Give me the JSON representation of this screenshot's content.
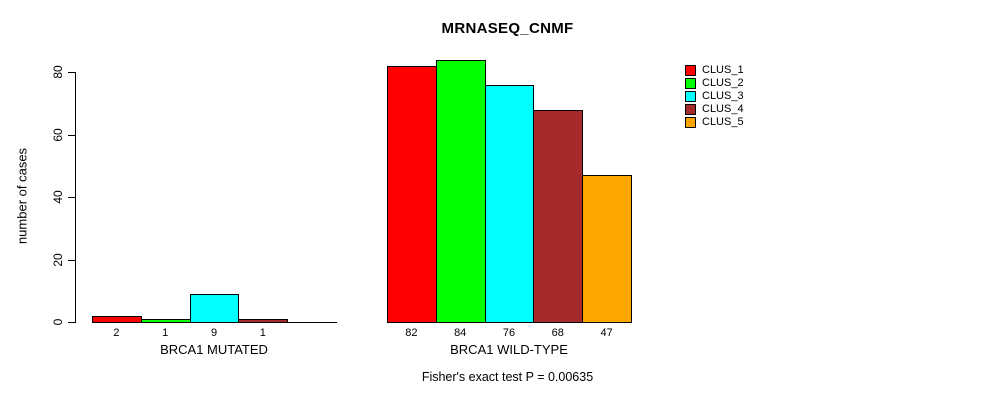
{
  "chart_data": {
    "type": "bar",
    "subtype": "grouped",
    "title": "MRNASEQ_CNMF",
    "ylabel": "number of cases",
    "xlabel": "",
    "categories": [
      "BRCA1 MUTATED",
      "BRCA1 WILD-TYPE"
    ],
    "series": [
      {
        "name": "CLUS_1",
        "color": "#ff0000",
        "values": [
          2,
          82
        ]
      },
      {
        "name": "CLUS_2",
        "color": "#00ff00",
        "values": [
          1,
          84
        ]
      },
      {
        "name": "CLUS_3",
        "color": "#00ffff",
        "values": [
          9,
          76
        ]
      },
      {
        "name": "CLUS_4",
        "color": "#a52a2a",
        "values": [
          1,
          68
        ]
      },
      {
        "name": "CLUS_5",
        "color": "#ffa500",
        "values": [
          0,
          47
        ]
      }
    ],
    "bar_value_labels": {
      "BRCA1 MUTATED": [
        "2",
        "1",
        "9",
        "1",
        ""
      ],
      "BRCA1 WILD-TYPE": [
        "82",
        "84",
        "76",
        "68",
        "47"
      ]
    },
    "ylim": [
      0,
      80
    ],
    "yticks": [
      0,
      20,
      40,
      60,
      80
    ],
    "grid": false,
    "legend_position": "top-right",
    "bar_outline_color": "#000000",
    "axis_color": "#000000",
    "background_color": "#ffffff",
    "footer": "Fisher's exact test P = 0.00635"
  }
}
